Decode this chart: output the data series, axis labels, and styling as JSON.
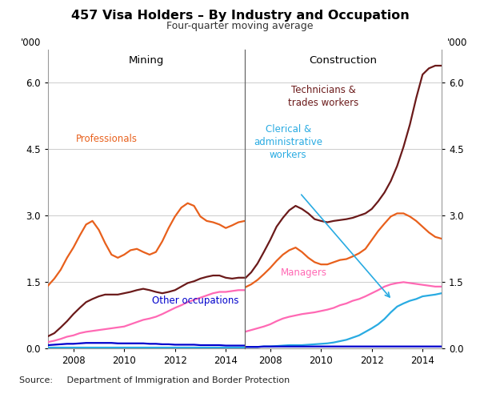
{
  "title": "457 Visa Holders – By Industry and Occupation",
  "subtitle": "Four-quarter moving average",
  "ylim": [
    0,
    6.75
  ],
  "yticks": [
    0.0,
    1.5,
    3.0,
    4.5,
    6.0
  ],
  "ytick_labels": [
    "0.0",
    "1.5",
    "3.0",
    "4.5",
    "6.0"
  ],
  "source": "Source:     Department of Immigration and Border Protection",
  "panel_left_title": "Mining",
  "panel_right_title": "Construction",
  "x_years": [
    2007.0,
    2007.25,
    2007.5,
    2007.75,
    2008.0,
    2008.25,
    2008.5,
    2008.75,
    2009.0,
    2009.25,
    2009.5,
    2009.75,
    2010.0,
    2010.25,
    2010.5,
    2010.75,
    2011.0,
    2011.25,
    2011.5,
    2011.75,
    2012.0,
    2012.25,
    2012.5,
    2012.75,
    2013.0,
    2013.25,
    2013.5,
    2013.75,
    2014.0,
    2014.25,
    2014.5,
    2014.75
  ],
  "mining_professionals": [
    1.42,
    1.58,
    1.78,
    2.05,
    2.28,
    2.55,
    2.8,
    2.88,
    2.68,
    2.38,
    2.12,
    2.05,
    2.12,
    2.22,
    2.25,
    2.18,
    2.12,
    2.18,
    2.42,
    2.72,
    2.98,
    3.18,
    3.28,
    3.22,
    2.98,
    2.88,
    2.85,
    2.8,
    2.72,
    2.78,
    2.85,
    2.88
  ],
  "mining_technicians": [
    0.28,
    0.35,
    0.48,
    0.62,
    0.78,
    0.92,
    1.05,
    1.12,
    1.18,
    1.22,
    1.22,
    1.22,
    1.25,
    1.28,
    1.32,
    1.35,
    1.32,
    1.28,
    1.25,
    1.28,
    1.32,
    1.4,
    1.48,
    1.52,
    1.58,
    1.62,
    1.65,
    1.65,
    1.6,
    1.58,
    1.6,
    1.6
  ],
  "mining_managers": [
    0.15,
    0.18,
    0.22,
    0.27,
    0.3,
    0.35,
    0.38,
    0.4,
    0.42,
    0.44,
    0.46,
    0.48,
    0.5,
    0.55,
    0.6,
    0.65,
    0.68,
    0.72,
    0.78,
    0.85,
    0.92,
    0.98,
    1.05,
    1.1,
    1.15,
    1.2,
    1.25,
    1.28,
    1.28,
    1.3,
    1.32,
    1.32
  ],
  "mining_other": [
    0.08,
    0.09,
    0.1,
    0.11,
    0.11,
    0.12,
    0.13,
    0.13,
    0.13,
    0.13,
    0.13,
    0.12,
    0.12,
    0.12,
    0.12,
    0.12,
    0.11,
    0.11,
    0.1,
    0.1,
    0.09,
    0.09,
    0.09,
    0.09,
    0.08,
    0.08,
    0.08,
    0.08,
    0.07,
    0.07,
    0.07,
    0.07
  ],
  "mining_clerical": [
    0.02,
    0.02,
    0.02,
    0.02,
    0.02,
    0.02,
    0.02,
    0.02,
    0.02,
    0.02,
    0.02,
    0.02,
    0.02,
    0.02,
    0.02,
    0.02,
    0.02,
    0.02,
    0.02,
    0.02,
    0.02,
    0.02,
    0.02,
    0.02,
    0.02,
    0.02,
    0.02,
    0.02,
    0.02,
    0.02,
    0.02,
    0.02
  ],
  "constr_technicians": [
    1.58,
    1.72,
    1.92,
    2.18,
    2.45,
    2.75,
    2.95,
    3.12,
    3.22,
    3.15,
    3.05,
    2.92,
    2.88,
    2.85,
    2.88,
    2.9,
    2.92,
    2.95,
    3.0,
    3.05,
    3.15,
    3.32,
    3.52,
    3.78,
    4.12,
    4.55,
    5.05,
    5.65,
    6.18,
    6.32,
    6.38,
    6.38
  ],
  "constr_professionals": [
    1.38,
    1.45,
    1.55,
    1.68,
    1.82,
    1.98,
    2.12,
    2.22,
    2.28,
    2.18,
    2.05,
    1.95,
    1.9,
    1.9,
    1.95,
    2.0,
    2.02,
    2.08,
    2.15,
    2.25,
    2.45,
    2.65,
    2.82,
    2.98,
    3.05,
    3.05,
    2.98,
    2.88,
    2.75,
    2.62,
    2.52,
    2.48
  ],
  "constr_managers": [
    0.38,
    0.42,
    0.46,
    0.5,
    0.55,
    0.62,
    0.68,
    0.72,
    0.75,
    0.78,
    0.8,
    0.82,
    0.85,
    0.88,
    0.92,
    0.98,
    1.02,
    1.08,
    1.12,
    1.18,
    1.25,
    1.32,
    1.4,
    1.45,
    1.48,
    1.5,
    1.48,
    1.46,
    1.44,
    1.42,
    1.4,
    1.4
  ],
  "constr_clerical": [
    0.04,
    0.04,
    0.04,
    0.05,
    0.05,
    0.06,
    0.07,
    0.08,
    0.08,
    0.08,
    0.09,
    0.1,
    0.11,
    0.12,
    0.14,
    0.17,
    0.2,
    0.25,
    0.3,
    0.38,
    0.46,
    0.55,
    0.67,
    0.82,
    0.95,
    1.02,
    1.08,
    1.12,
    1.18,
    1.2,
    1.22,
    1.25
  ],
  "constr_other": [
    0.04,
    0.04,
    0.04,
    0.05,
    0.05,
    0.05,
    0.05,
    0.05,
    0.05,
    0.05,
    0.05,
    0.05,
    0.05,
    0.05,
    0.05,
    0.05,
    0.05,
    0.05,
    0.05,
    0.05,
    0.05,
    0.05,
    0.05,
    0.05,
    0.05,
    0.05,
    0.05,
    0.05,
    0.05,
    0.05,
    0.05,
    0.05
  ],
  "color_professionals": "#E8601C",
  "color_technicians": "#6B1A1A",
  "color_managers": "#FF69B4",
  "color_clerical": "#29ABE2",
  "color_other": "#0000CC",
  "xtick_years": [
    2008,
    2010,
    2012,
    2014
  ],
  "xlim": [
    2007.0,
    2014.75
  ],
  "bg_color": "#FFFFFF",
  "grid_color": "#CCCCCC",
  "lw": 1.6
}
